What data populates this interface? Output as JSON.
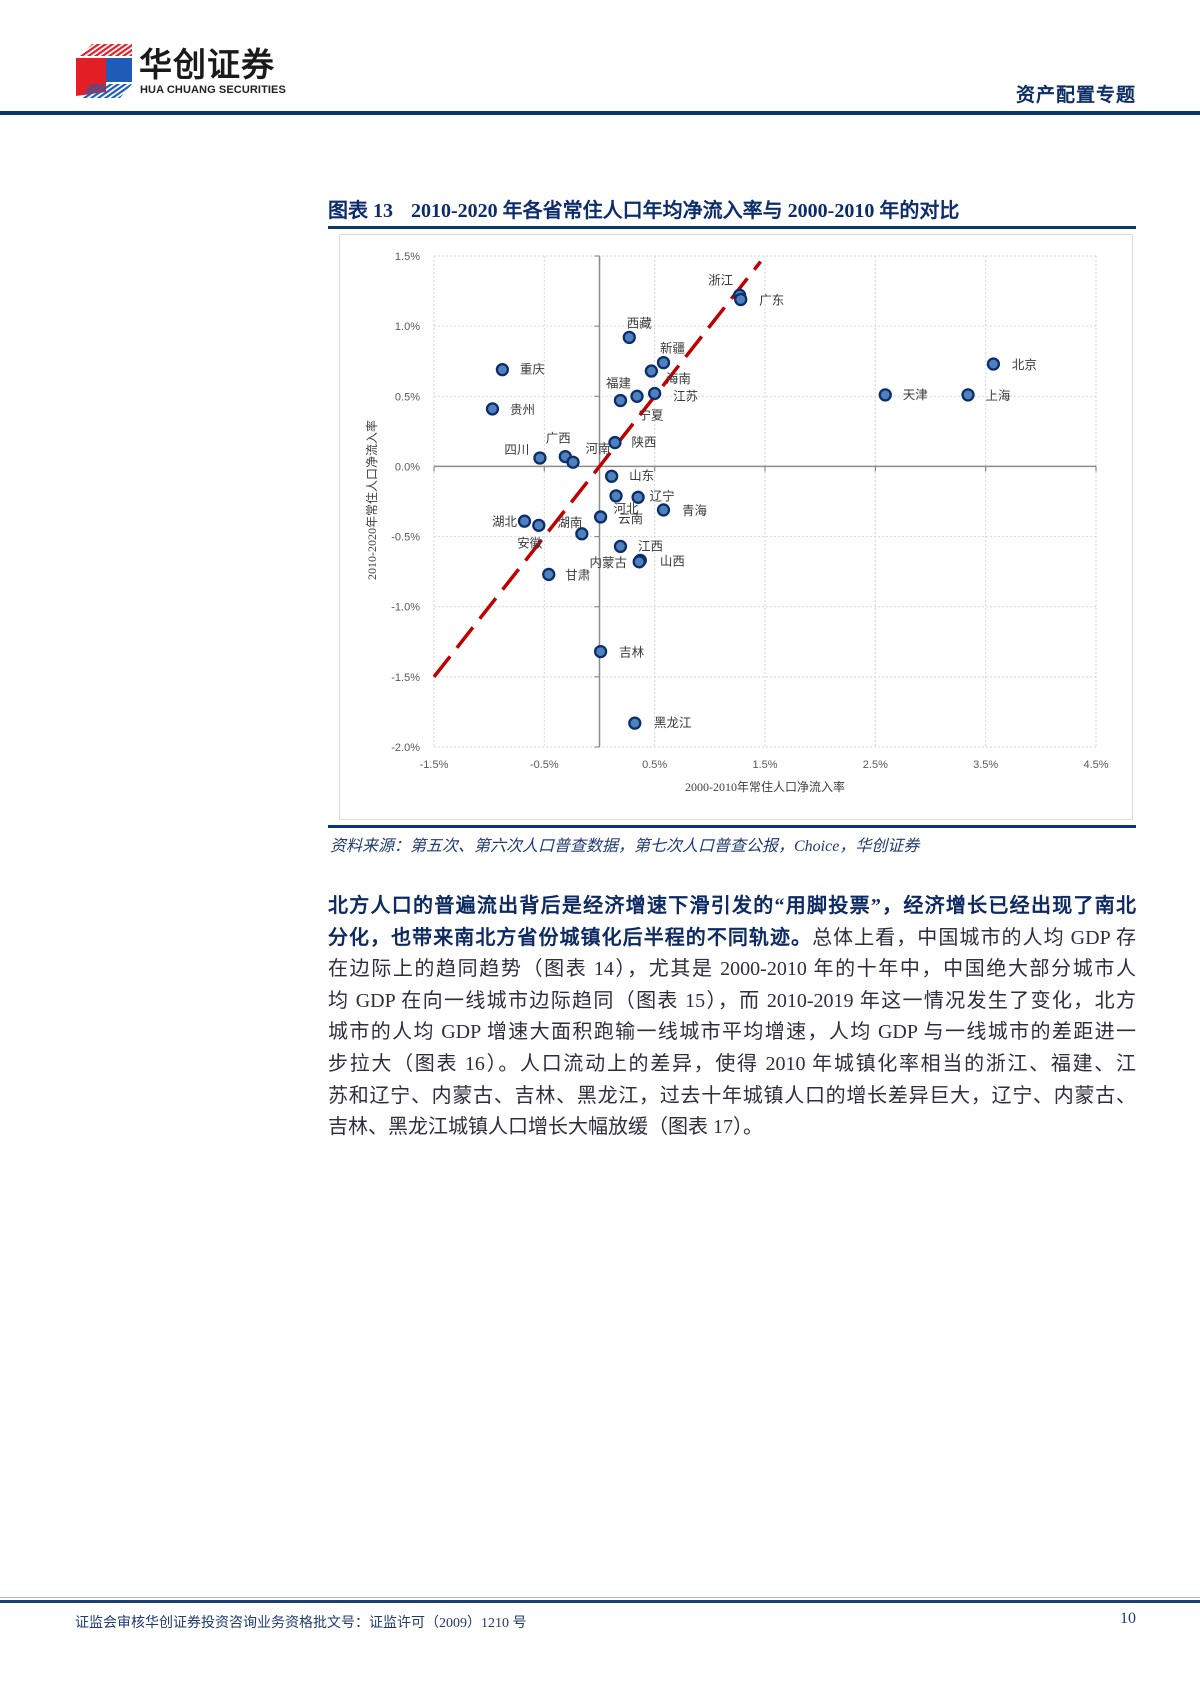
{
  "header": {
    "logo_cn": "华创证券",
    "logo_en": "HUA CHUANG SECURITIES",
    "section": "资产配置专题",
    "brand_colors": {
      "red": "#e31e24",
      "blue": "#1f5cb8",
      "navy": "#0c3670"
    }
  },
  "figure": {
    "label": "图表 13",
    "title": "2010-2020 年各省常住人口年均净流入率与 2000-2010 年的对比",
    "source": "资料来源：第五次、第六次人口普查数据，第七次人口普查公报，Choice，华创证券"
  },
  "chart_data": {
    "type": "scatter",
    "title": "2010-2020 年各省常住人口年均净流入率与 2000-2010 年的对比",
    "xlabel": "2000-2010年常住人口净流入率",
    "ylabel": "2010-2020年常住人口净流入率",
    "unit": "%",
    "xlim": [
      -1.5,
      4.5
    ],
    "ylim": [
      -2.0,
      1.5
    ],
    "xticks": [
      -1.5,
      -0.5,
      0.5,
      1.5,
      2.5,
      3.5,
      4.5
    ],
    "xtick_labels": [
      "-1.5%",
      "-0.5%",
      "0.5%",
      "1.5%",
      "2.5%",
      "3.5%",
      "4.5%"
    ],
    "yticks": [
      1.5,
      1.0,
      0.5,
      0.0,
      -0.5,
      -1.0,
      -1.5,
      -2.0
    ],
    "ytick_labels": [
      "1.5%",
      "1.0%",
      "0.5%",
      "0.0%",
      "-0.5%",
      "-1.0%",
      "-1.5%",
      "-2.0%"
    ],
    "grid": true,
    "legend": null,
    "marker": {
      "fill": "#4f81bd",
      "stroke": "#0b2d6b"
    },
    "reference_line": {
      "kind": "y=x",
      "from": [
        -1.5,
        -1.5
      ],
      "to": [
        1.46,
        1.46
      ],
      "color": "#c00000",
      "style": "dashed"
    },
    "points": [
      {
        "label": "浙江",
        "x": 1.27,
        "y": 1.22,
        "label_offset": [
          -19,
          -15
        ]
      },
      {
        "label": "广东",
        "x": 1.28,
        "y": 1.19,
        "label_offset": [
          31,
          1
        ]
      },
      {
        "label": "西藏",
        "x": 0.27,
        "y": 0.92,
        "label_offset": [
          10,
          -14
        ]
      },
      {
        "label": "新疆",
        "x": 0.58,
        "y": 0.74,
        "label_offset": [
          9,
          -14
        ]
      },
      {
        "label": "海南",
        "x": 0.47,
        "y": 0.68,
        "label_offset": [
          27,
          8
        ]
      },
      {
        "label": "重庆",
        "x": -0.88,
        "y": 0.69,
        "label_offset": [
          30,
          0
        ]
      },
      {
        "label": "福建",
        "x": 0.19,
        "y": 0.47,
        "label_offset": [
          -2,
          -17
        ]
      },
      {
        "label": "宁夏",
        "x": 0.34,
        "y": 0.5,
        "label_offset": [
          14,
          19
        ]
      },
      {
        "label": "江苏",
        "x": 0.5,
        "y": 0.52,
        "label_offset": [
          31,
          3
        ]
      },
      {
        "label": "贵州",
        "x": -0.97,
        "y": 0.41,
        "label_offset": [
          30,
          1
        ]
      },
      {
        "label": "陕西",
        "x": 0.14,
        "y": 0.17,
        "label_offset": [
          29,
          0
        ]
      },
      {
        "label": "四川",
        "x": -0.54,
        "y": 0.06,
        "label_offset": [
          -23,
          -8
        ]
      },
      {
        "label": "广西",
        "x": -0.31,
        "y": 0.07,
        "label_offset": [
          -7,
          -18
        ]
      },
      {
        "label": "河南",
        "x": -0.24,
        "y": 0.03,
        "label_offset": [
          25,
          -13
        ]
      },
      {
        "label": "山东",
        "x": 0.11,
        "y": -0.07,
        "label_offset": [
          30,
          0
        ]
      },
      {
        "label": "河北",
        "x": 0.15,
        "y": -0.21,
        "label_offset": [
          10,
          13
        ]
      },
      {
        "label": "辽宁",
        "x": 0.35,
        "y": -0.22,
        "label_offset": [
          24,
          -1
        ]
      },
      {
        "label": "青海",
        "x": 0.58,
        "y": -0.31,
        "label_offset": [
          31,
          1
        ]
      },
      {
        "label": "云南",
        "x": 0.01,
        "y": -0.36,
        "label_offset": [
          30,
          2
        ]
      },
      {
        "label": "湖北",
        "x": -0.68,
        "y": -0.39,
        "label_offset": [
          -20,
          1
        ]
      },
      {
        "label": "安徽",
        "x": -0.55,
        "y": -0.42,
        "label_offset": [
          -9,
          18
        ]
      },
      {
        "label": "湖南",
        "x": -0.16,
        "y": -0.48,
        "label_offset": [
          -12,
          -11
        ]
      },
      {
        "label": "江西",
        "x": 0.19,
        "y": -0.57,
        "label_offset": [
          30,
          0
        ]
      },
      {
        "label": "山西",
        "x": 0.37,
        "y": -0.67,
        "label_offset": [
          32,
          1
        ]
      },
      {
        "label": "内蒙古",
        "x": 0.36,
        "y": -0.68,
        "label_offset": [
          -31,
          1
        ]
      },
      {
        "label": "甘肃",
        "x": -0.46,
        "y": -0.77,
        "label_offset": [
          29,
          1
        ]
      },
      {
        "label": "吉林",
        "x": 0.01,
        "y": -1.32,
        "label_offset": [
          31,
          1
        ]
      },
      {
        "label": "黑龙江",
        "x": 0.32,
        "y": -1.83,
        "label_offset": [
          38,
          0
        ]
      },
      {
        "label": "北京",
        "x": 3.57,
        "y": 0.73,
        "label_offset": [
          31,
          1
        ]
      },
      {
        "label": "天津",
        "x": 2.59,
        "y": 0.51,
        "label_offset": [
          30,
          0
        ]
      },
      {
        "label": "上海",
        "x": 3.34,
        "y": 0.51,
        "label_offset": [
          30,
          1
        ]
      }
    ]
  },
  "body": {
    "lines": [
      {
        "segments": [
          {
            "text": "北方人口的普遍流出背后是经济增速下滑引发的“用脚投票”，经济增长已经出现了南北",
            "bold": true
          }
        ]
      },
      {
        "segments": [
          {
            "text": "分化，也带来南北方省份城镇化后半程的不同轨迹。",
            "bold": true
          },
          {
            "text": "总体上看，中国城市的人均 GDP 存",
            "bold": false
          }
        ]
      },
      {
        "segments": [
          {
            "text": "在边际上的趋同趋势（图表 14），尤其是 2000-2010 年的十年中，中国绝大部分城市人",
            "bold": false
          }
        ]
      },
      {
        "segments": [
          {
            "text": "均 GDP 在向一线城市边际趋同（图表 15），而 2010-2019 年这一情况发生了变化，北方",
            "bold": false
          }
        ]
      },
      {
        "segments": [
          {
            "text": "城市的人均 GDP 增速大面积跑输一线城市平均增速，人均 GDP 与一线城市的差距进一",
            "bold": false
          }
        ]
      },
      {
        "segments": [
          {
            "text": "步拉大（图表 16）。人口流动上的差异，使得 2010 年城镇化率相当的浙江、福建、江",
            "bold": false
          }
        ]
      },
      {
        "segments": [
          {
            "text": "苏和辽宁、内蒙古、吉林、黑龙江，过去十年城镇人口的增长差异巨大，辽宁、内蒙古、",
            "bold": false
          }
        ]
      },
      {
        "segments": [
          {
            "text": "吉林、黑龙江城镇人口增长大幅放缓（图表 17）。",
            "bold": false
          }
        ]
      }
    ]
  },
  "footer": {
    "license": "证监会审核华创证券投资咨询业务资格批文号：证监许可（2009）1210 号",
    "page": "10"
  }
}
